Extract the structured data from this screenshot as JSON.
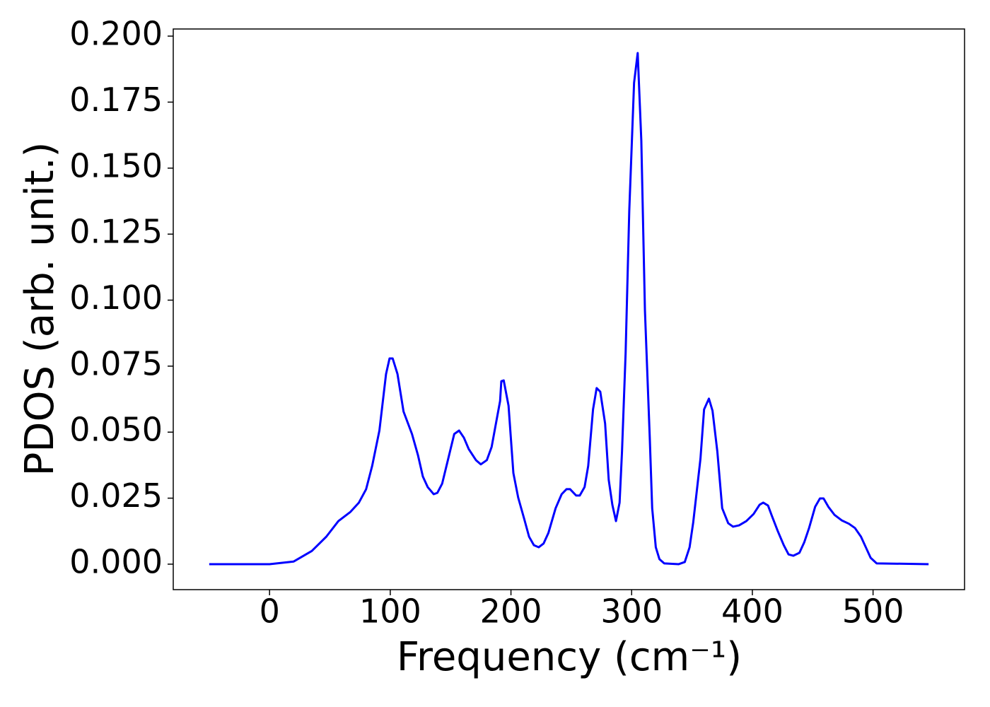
{
  "chart_data": {
    "type": "line",
    "xlabel": "Frequency (cm⁻¹)",
    "ylabel": "PDOS (arb. unit.)",
    "xlim": [
      -79.8,
      575.8
    ],
    "ylim": [
      -0.00965,
      0.2027
    ],
    "xticks": [
      0,
      100,
      200,
      300,
      400,
      500
    ],
    "yticks": [
      {
        "value": 0,
        "label": "0.000"
      },
      {
        "value": 0.025,
        "label": "0.025"
      },
      {
        "value": 0.05,
        "label": "0.050"
      },
      {
        "value": 0.075,
        "label": "0.075"
      },
      {
        "value": 0.1,
        "label": "0.100"
      },
      {
        "value": 0.125,
        "label": "0.125"
      },
      {
        "value": 0.15,
        "label": "0.150"
      },
      {
        "value": 0.175,
        "label": "0.175"
      },
      {
        "value": 0.2,
        "label": "0.200"
      }
    ],
    "grid": false,
    "series": [
      {
        "color": "#0000ff",
        "x": [
          -50,
          0,
          20,
          35,
          47,
          57,
          67,
          74,
          80,
          85,
          91,
          96.5,
          99.4,
          102,
          106,
          111,
          118,
          123,
          127,
          131,
          136,
          139,
          143,
          148,
          153,
          157,
          161,
          165,
          171,
          175,
          180,
          184,
          187,
          191,
          192,
          194,
          198,
          202,
          206,
          211,
          215,
          219,
          223,
          227,
          231,
          237,
          242,
          246,
          249,
          254,
          257,
          261,
          264,
          268,
          271,
          274,
          278,
          281,
          284,
          287,
          290,
          292,
          295,
          298,
          302,
          305,
          308,
          311,
          315,
          317,
          320,
          323,
          327,
          339,
          344,
          348,
          351,
          357,
          360,
          364,
          367,
          371,
          375,
          380,
          384,
          389,
          395,
          401,
          406,
          409,
          413,
          416,
          421,
          426,
          430,
          434,
          439,
          443,
          447,
          452,
          456,
          459,
          463,
          468,
          474,
          480,
          485,
          490,
          494,
          498,
          503,
          546
        ],
        "values": [
          0,
          0,
          0.001,
          0.005,
          0.0104,
          0.0163,
          0.0198,
          0.0233,
          0.0284,
          0.0372,
          0.0506,
          0.072,
          0.0779,
          0.0779,
          0.072,
          0.0578,
          0.0493,
          0.0412,
          0.0332,
          0.0292,
          0.0265,
          0.027,
          0.0305,
          0.0399,
          0.0493,
          0.0506,
          0.0479,
          0.0436,
          0.0394,
          0.0378,
          0.0394,
          0.0444,
          0.0519,
          0.0618,
          0.0693,
          0.0696,
          0.06,
          0.0345,
          0.0252,
          0.0171,
          0.0104,
          0.0072,
          0.0064,
          0.0078,
          0.0118,
          0.0212,
          0.0265,
          0.0284,
          0.0284,
          0.026,
          0.026,
          0.0292,
          0.0372,
          0.0586,
          0.0667,
          0.0653,
          0.0533,
          0.0319,
          0.0225,
          0.0163,
          0.0233,
          0.0426,
          0.08,
          0.1336,
          0.1823,
          0.1936,
          0.1604,
          0.0961,
          0.0479,
          0.0212,
          0.0064,
          0.0019,
          0.0003,
          0,
          0.0008,
          0.0064,
          0.0158,
          0.0399,
          0.0586,
          0.0627,
          0.0581,
          0.0426,
          0.0212,
          0.0155,
          0.0142,
          0.0147,
          0.0163,
          0.019,
          0.0225,
          0.0233,
          0.0222,
          0.0185,
          0.0126,
          0.0072,
          0.0037,
          0.0032,
          0.0043,
          0.0083,
          0.0137,
          0.0217,
          0.0249,
          0.0249,
          0.0217,
          0.0187,
          0.0166,
          0.0153,
          0.0137,
          0.0104,
          0.0064,
          0.0024,
          0.0003,
          0
        ]
      }
    ]
  }
}
